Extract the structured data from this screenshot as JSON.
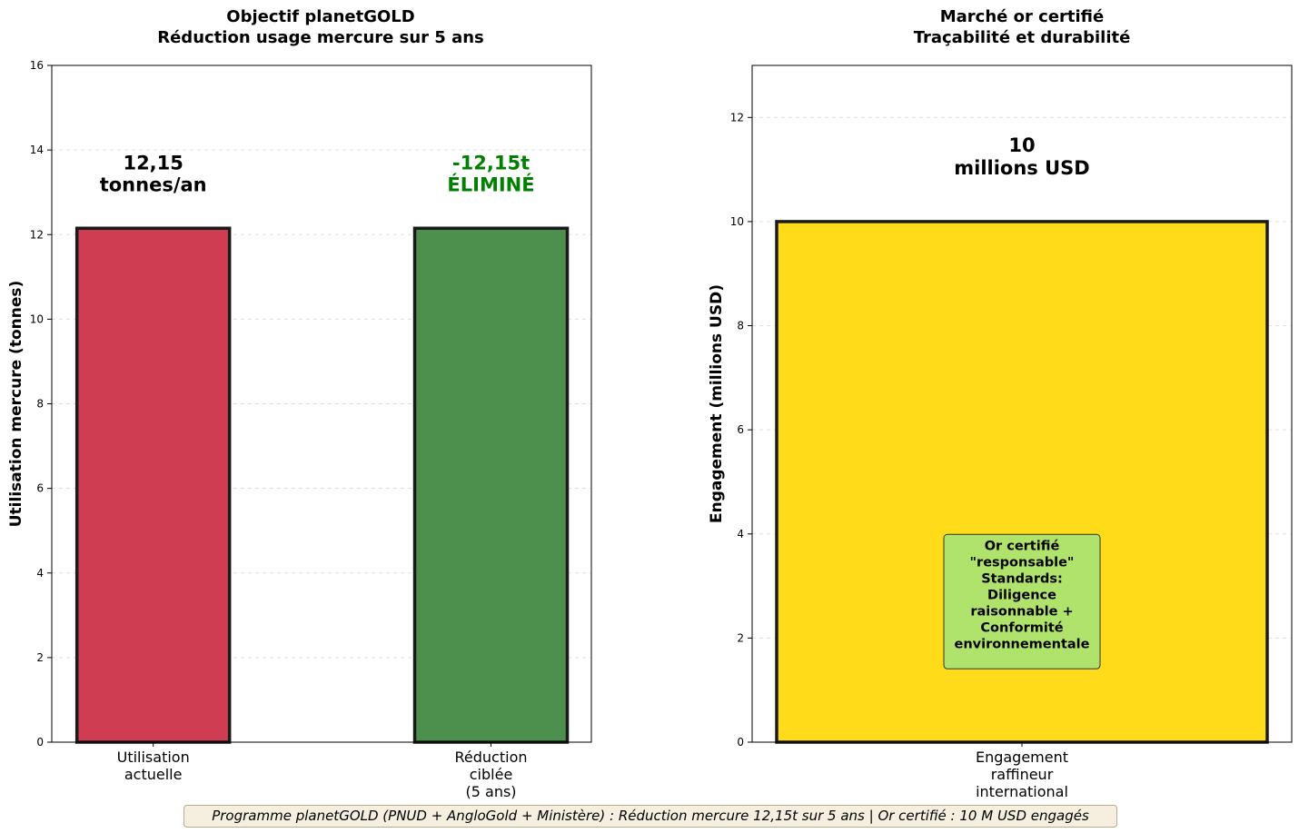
{
  "chart_data": [
    {
      "type": "bar",
      "title": [
        "Objectif planetGOLD",
        "Réduction usage mercure sur 5 ans"
      ],
      "ylabel": "Utilisation mercure (tonnes)",
      "xlabel": "",
      "ylim": [
        0,
        16
      ],
      "yticks": [
        0,
        2,
        4,
        6,
        8,
        10,
        12,
        14,
        16
      ],
      "grid": "y-dashed",
      "categories": [
        [
          "Utilisation",
          "actuelle"
        ],
        [
          "Réduction",
          "ciblée",
          "(5 ans)"
        ]
      ],
      "values": [
        12.15,
        12.15
      ],
      "colors": [
        "#c9283e",
        "#3a8339"
      ],
      "data_labels": [
        [
          "12,15",
          "tonnes/an"
        ],
        [
          "-12,15t",
          "ÉLIMINÉ"
        ]
      ],
      "data_label_colors": [
        "#000000",
        "#008000"
      ]
    },
    {
      "type": "bar",
      "title": [
        "Marché or certifié",
        "Traçabilité et durabilité"
      ],
      "ylabel": "Engagement (millions USD)",
      "xlabel": "",
      "ylim": [
        0,
        13
      ],
      "yticks": [
        0,
        2,
        4,
        6,
        8,
        10,
        12
      ],
      "grid": "y-dashed",
      "categories": [
        [
          "Engagement",
          "raffineur",
          "international"
        ]
      ],
      "values": [
        10
      ],
      "colors": [
        "#ffd700"
      ],
      "data_labels": [
        [
          "10",
          "millions USD"
        ]
      ],
      "data_label_colors": [
        "#000000"
      ],
      "annotation": {
        "lines": [
          "Or certifié",
          "\"responsable\"",
          "",
          "Standards:",
          "Diligence",
          "raisonnable +",
          "Conformité",
          "environnementale"
        ],
        "at_y": 2.7,
        "background": "#b0e36c"
      }
    }
  ],
  "footer": "Programme planetGOLD (PNUD + AngloGold + Ministère) : Réduction mercure 12,15t sur 5 ans | Or certifié : 10 M USD engagés"
}
